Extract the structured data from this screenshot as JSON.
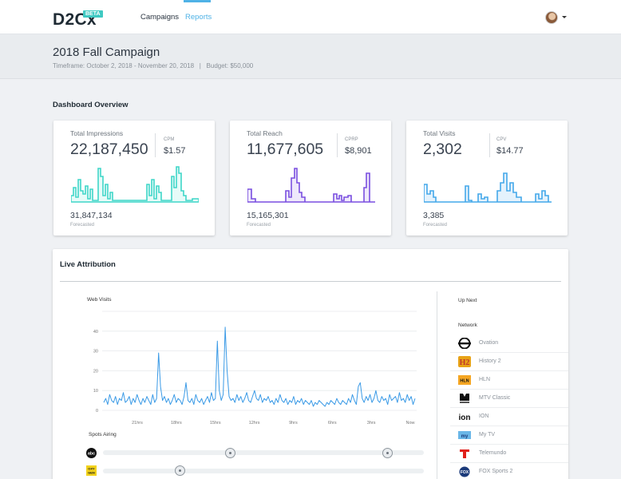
{
  "app": {
    "logo": "D2Cx",
    "badge": "BETA"
  },
  "nav": {
    "campaigns": "Campaigns",
    "reports": "Reports"
  },
  "campaign": {
    "title": "2018 Fall Campaign",
    "meta": "Timeframe: October 2, 2018 - November 20, 2018   |   Budget: $50,000"
  },
  "dashboard": {
    "title": "Dashboard Overview",
    "cards": [
      {
        "label": "Total Impressions",
        "value": "22,187,450",
        "sublabel": "CPM",
        "subvalue": "$1.57",
        "forecast": "31,847,134",
        "forecast_label": "Forecasted",
        "color": "#3fd6c8",
        "fill": "#e6fbf8"
      },
      {
        "label": "Total Reach",
        "value": "11,677,605",
        "sublabel": "CPRP",
        "subvalue": "$8,901",
        "forecast": "15,165,301",
        "forecast_label": "Forecasted",
        "color": "#7a4fe0",
        "fill": "#eee8fb"
      },
      {
        "label": "Total Visits",
        "value": "2,302",
        "sublabel": "CPV",
        "subvalue": "$14.77",
        "forecast": "3,385",
        "forecast_label": "Forecasted",
        "color": "#44a8ea",
        "fill": "#e4f2fc"
      }
    ]
  },
  "live": {
    "title": "Live Attribution",
    "web_visits_label": "Web Visits",
    "spots_label": "Spots Airing",
    "spots": [
      {
        "network": "abc",
        "logo_icon": "abc-logo-icon",
        "positions": [
          0.44,
          0.89
        ]
      },
      {
        "network": "OXY GEN",
        "logo_icon": "oxygen-logo-icon",
        "positions": [
          0.24
        ]
      }
    ],
    "up_next_label": "Up Next",
    "network_label": "Network",
    "networks": [
      {
        "name": "Ovation",
        "icon": "ovation-logo-icon"
      },
      {
        "name": "History 2",
        "icon": "history2-logo-icon"
      },
      {
        "name": "HLN",
        "icon": "hln-logo-icon"
      },
      {
        "name": "MTV Classic",
        "icon": "mtv-classic-logo-icon"
      },
      {
        "name": "ION",
        "icon": "ion-logo-icon"
      },
      {
        "name": "My TV",
        "icon": "mytv-logo-icon"
      },
      {
        "name": "Telemundo",
        "icon": "telemundo-logo-icon"
      },
      {
        "name": "FOX Sports 2",
        "icon": "fox-sports2-logo-icon"
      }
    ]
  },
  "chart_data": {
    "type": "line",
    "title": "Web Visits",
    "ylim": [
      0,
      50
    ],
    "yticks": [
      "0",
      "10",
      "20",
      "30",
      "40"
    ],
    "xticks": [
      "21hrs",
      "18hrs",
      "15hrs",
      "12hrs",
      "9hrs",
      "6hrs",
      "3hrs",
      "Now"
    ],
    "color": "#3a9ae6",
    "grid": true,
    "series": [
      {
        "values": [
          4,
          6,
          3,
          8,
          5,
          4,
          7,
          3,
          6,
          5,
          9,
          4,
          5,
          7,
          3,
          6,
          4,
          8,
          5,
          3,
          6,
          4,
          7,
          5,
          3,
          8,
          4,
          6,
          29,
          12,
          5,
          7,
          4,
          6,
          3,
          5,
          8,
          4,
          6,
          5,
          3,
          7,
          14,
          5,
          4,
          6,
          3,
          8,
          5,
          4,
          6,
          3,
          5,
          7,
          4,
          9,
          5,
          6,
          35,
          10,
          5,
          8,
          42,
          20,
          7,
          5,
          6,
          4,
          8,
          5,
          7,
          4,
          6,
          9,
          5,
          4,
          7,
          10,
          6,
          5,
          8,
          4,
          6,
          5,
          7,
          4,
          5,
          3,
          6,
          4,
          8,
          5,
          4,
          6,
          3,
          5,
          4,
          7,
          3,
          5,
          4,
          6,
          3,
          5,
          4,
          3,
          5,
          2,
          4,
          3,
          5,
          4,
          3,
          2,
          4,
          3,
          5,
          4,
          3,
          6,
          4,
          3,
          5,
          4,
          3,
          6,
          4,
          8,
          5,
          3,
          12,
          14,
          6,
          4,
          7,
          5,
          8,
          4,
          6,
          10,
          5,
          4,
          7,
          5,
          6,
          3,
          8,
          5,
          6,
          7,
          4,
          9,
          5,
          6,
          4,
          8,
          5,
          7,
          3,
          6
        ]
      }
    ]
  }
}
